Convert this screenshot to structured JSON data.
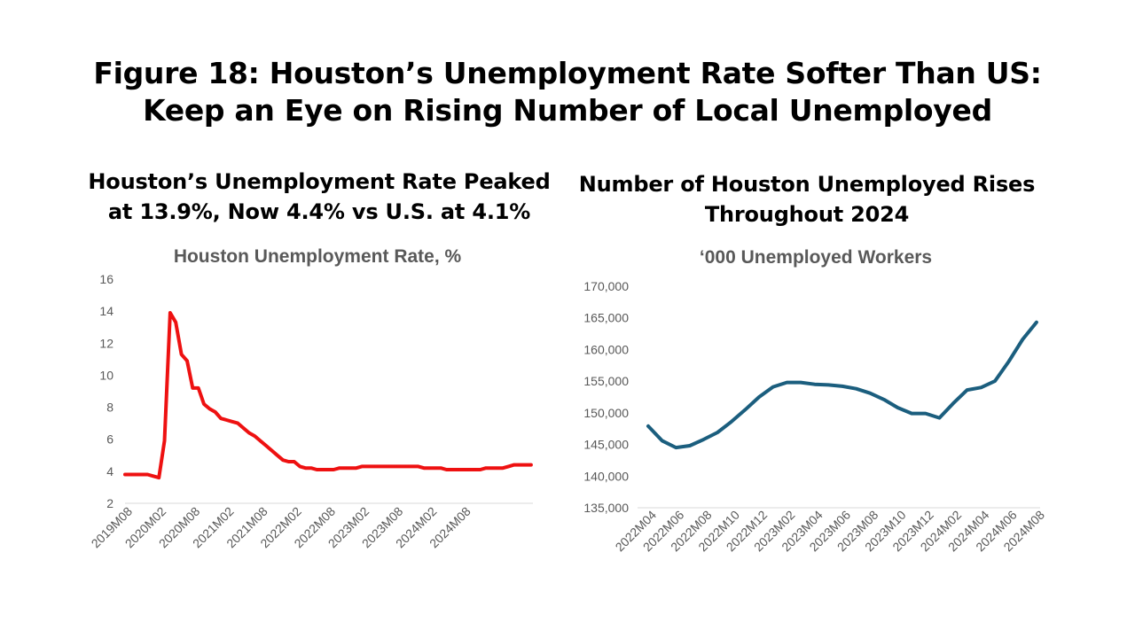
{
  "figure": {
    "title_line1": "Figure 18: Houston’s Unemployment Rate Softer Than US:",
    "title_line2": "Keep an Eye on Rising Number of Local Unemployed"
  },
  "left_panel": {
    "subtitle_line1": "Houston’s Unemployment Rate Peaked",
    "subtitle_line2": "at 13.9%, Now 4.4% vs U.S. at 4.1%"
  },
  "right_panel": {
    "subtitle_line1": "Number of Houston Unemployed Rises",
    "subtitle_line2": "Throughout 2024"
  },
  "chart_data": [
    {
      "type": "line",
      "title": "Houston Unemployment Rate, %",
      "xlabel": "",
      "ylabel": "",
      "ylim": [
        2,
        16
      ],
      "y_ticks": [
        2,
        4,
        6,
        8,
        10,
        12,
        14,
        16
      ],
      "y_tick_labels": [
        "2",
        "4",
        "6",
        "8",
        "10",
        "12",
        "14",
        "16"
      ],
      "x_tick_labels": [
        "2019M08",
        "2020M02",
        "2020M08",
        "2021M02",
        "2021M08",
        "2022M02",
        "2022M08",
        "2023M02",
        "2023M08",
        "2024M02",
        "2024M08"
      ],
      "x_tick_index_step": 6,
      "x_slots": 75,
      "grid": false,
      "color": "#ee1111",
      "series": [
        {
          "name": "Houston Unemployment Rate",
          "values": [
            3.8,
            3.8,
            3.8,
            3.8,
            3.8,
            3.7,
            3.6,
            5.9,
            13.9,
            13.3,
            11.3,
            10.9,
            9.2,
            9.2,
            8.2,
            7.9,
            7.7,
            7.3,
            7.2,
            7.1,
            7.0,
            6.7,
            6.4,
            6.2,
            5.9,
            5.6,
            5.3,
            5.0,
            4.7,
            4.6,
            4.6,
            4.3,
            4.2,
            4.2,
            4.1,
            4.1,
            4.1,
            4.1,
            4.2,
            4.2,
            4.2,
            4.2,
            4.3,
            4.3,
            4.3,
            4.3,
            4.3,
            4.3,
            4.3,
            4.3,
            4.3,
            4.3,
            4.3,
            4.2,
            4.2,
            4.2,
            4.2,
            4.1,
            4.1,
            4.1,
            4.1,
            4.1,
            4.1,
            4.1,
            4.2,
            4.2,
            4.2,
            4.2,
            4.3,
            4.4,
            4.4,
            4.4,
            4.4
          ]
        }
      ]
    },
    {
      "type": "line",
      "title": "‘000 Unemployed Workers",
      "xlabel": "",
      "ylabel": "",
      "ylim": [
        135000,
        170000
      ],
      "y_ticks": [
        135000,
        140000,
        145000,
        150000,
        155000,
        160000,
        165000,
        170000
      ],
      "y_tick_labels": [
        "135,000",
        "140,000",
        "145,000",
        "150,000",
        "155,000",
        "160,000",
        "165,000",
        "170,000"
      ],
      "categories": [
        "2022M04",
        "2022M05",
        "2022M06",
        "2022M07",
        "2022M08",
        "2022M09",
        "2022M10",
        "2022M11",
        "2022M12",
        "2023M01",
        "2023M02",
        "2023M03",
        "2023M04",
        "2023M05",
        "2023M06",
        "2023M07",
        "2023M08",
        "2023M09",
        "2023M10",
        "2023M11",
        "2023M12",
        "2024M01",
        "2024M02",
        "2024M03",
        "2024M04",
        "2024M05",
        "2024M06",
        "2024M07",
        "2024M08"
      ],
      "x_tick_labels": [
        "2022M04",
        "2022M06",
        "2022M08",
        "2022M10",
        "2022M12",
        "2023M02",
        "2023M04",
        "2023M06",
        "2023M08",
        "2023M10",
        "2023M12",
        "2024M02",
        "2024M04",
        "2024M06",
        "2024M08"
      ],
      "x_tick_index_step": 2,
      "grid": false,
      "color": "#1b5e7e",
      "series": [
        {
          "name": "Houston Unemployed",
          "values": [
            147900,
            145600,
            144500,
            144800,
            145800,
            146900,
            148600,
            150500,
            152500,
            154100,
            154800,
            154800,
            154500,
            154400,
            154200,
            153800,
            153100,
            152100,
            150800,
            149900,
            149900,
            149200,
            151500,
            153600,
            154000,
            155000,
            158100,
            161600,
            164300
          ]
        }
      ]
    }
  ]
}
